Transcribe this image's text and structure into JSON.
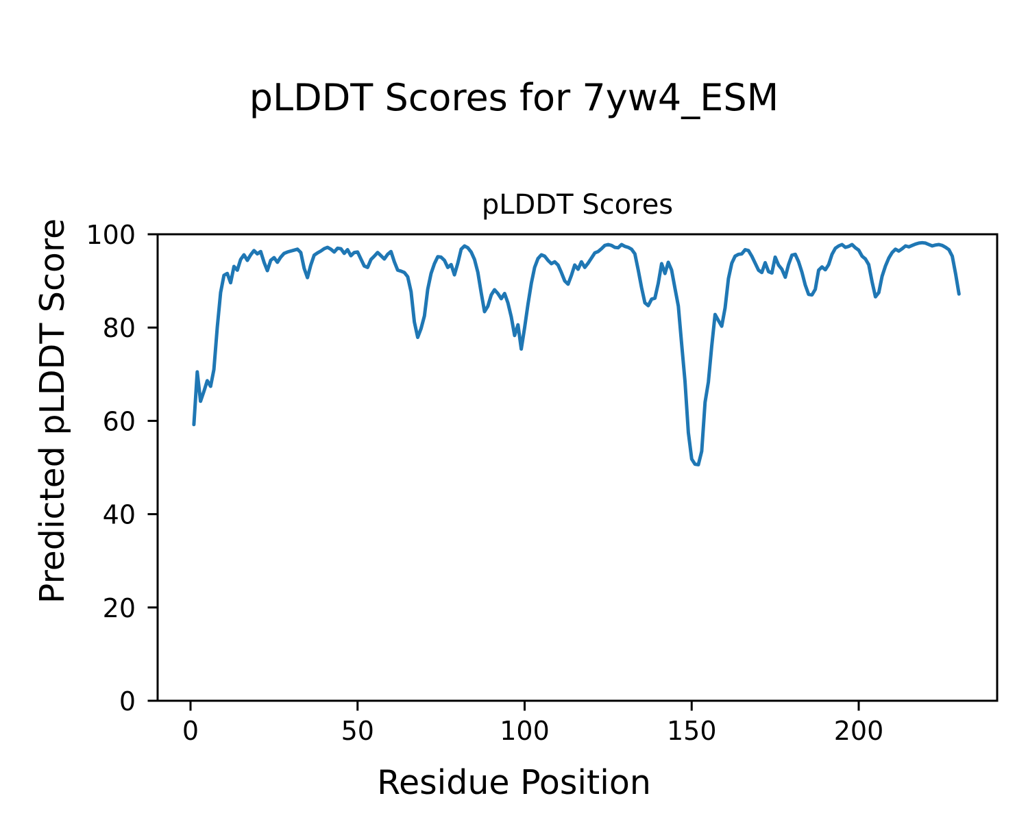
{
  "figure": {
    "suptitle": "pLDDT Scores for 7yw4_ESM",
    "axes_title": "pLDDT Scores",
    "xlabel": "Residue Position",
    "ylabel": "Predicted pLDDT Score"
  },
  "axes": {
    "x_ticks": [
      0,
      50,
      100,
      150,
      200
    ],
    "y_ticks": [
      0,
      20,
      40,
      60,
      80,
      100
    ],
    "xlim": [
      -10,
      241.5
    ],
    "ylim": [
      0,
      100
    ],
    "grid": false,
    "legend": "none"
  },
  "style": {
    "line_color": "#1f77b4",
    "spine_color": "#000000",
    "background_color": "#ffffff",
    "line_width": 5,
    "spine_width": 3
  },
  "chart_data": {
    "type": "line",
    "title": "pLDDT Scores",
    "suptitle": "pLDDT Scores for 7yw4_ESM",
    "xlabel": "Residue Position",
    "ylabel": "Predicted pLDDT Score",
    "xlim": [
      -10,
      241.5
    ],
    "ylim": [
      0,
      100
    ],
    "grid": false,
    "legend_position": "none",
    "series": [
      {
        "name": "pLDDT",
        "color": "#1f77b4",
        "x_start": 1,
        "x_step": 1,
        "values": [
          59.2,
          70.5,
          64.2,
          66.3,
          68.6,
          67.4,
          71.0,
          80.0,
          87.5,
          91.2,
          91.6,
          89.6,
          93.1,
          92.3,
          94.6,
          95.6,
          94.4,
          95.6,
          96.5,
          95.8,
          96.3,
          94.0,
          92.2,
          94.4,
          95.0,
          94.0,
          95.1,
          95.9,
          96.2,
          96.4,
          96.6,
          96.8,
          96.1,
          92.7,
          90.7,
          93.4,
          95.5,
          96.0,
          96.4,
          96.9,
          97.2,
          96.8,
          96.2,
          97.0,
          96.9,
          95.9,
          96.7,
          95.4,
          96.1,
          96.2,
          94.7,
          93.2,
          92.9,
          94.6,
          95.3,
          96.1,
          95.4,
          94.7,
          95.7,
          96.3,
          94.1,
          92.3,
          92.1,
          91.8,
          90.9,
          87.7,
          81.2,
          77.9,
          79.8,
          82.5,
          88.2,
          91.6,
          93.7,
          95.2,
          95.1,
          94.4,
          92.9,
          93.5,
          91.3,
          93.8,
          96.8,
          97.5,
          97.1,
          96.2,
          94.6,
          91.8,
          87.5,
          83.4,
          84.6,
          87.0,
          88.1,
          87.3,
          86.2,
          87.3,
          85.3,
          82.3,
          78.3,
          80.6,
          75.4,
          80.0,
          85.0,
          89.5,
          92.9,
          94.8,
          95.6,
          95.3,
          94.4,
          93.7,
          94.1,
          93.4,
          91.8,
          90.0,
          89.3,
          91.2,
          93.4,
          92.5,
          94.1,
          92.9,
          93.8,
          94.9,
          96.0,
          96.3,
          96.9,
          97.6,
          97.8,
          97.6,
          97.2,
          97.1,
          97.8,
          97.4,
          97.2,
          96.8,
          95.8,
          92.3,
          88.6,
          85.3,
          84.7,
          86.1,
          86.3,
          89.5,
          93.7,
          91.6,
          94.0,
          92.3,
          88.4,
          84.6,
          76.5,
          68.5,
          57.5,
          51.8,
          50.7,
          50.6,
          53.5,
          64.0,
          68.3,
          76.0,
          82.8,
          81.5,
          80.3,
          84.2,
          90.5,
          93.8,
          95.3,
          95.7,
          95.8,
          96.7,
          96.5,
          95.3,
          93.8,
          92.3,
          91.8,
          93.9,
          92.0,
          91.7,
          95.1,
          93.4,
          92.5,
          90.8,
          93.5,
          95.5,
          95.7,
          94.1,
          91.9,
          89.1,
          87.1,
          87.0,
          88.2,
          92.3,
          93.0,
          92.4,
          93.5,
          95.7,
          97.0,
          97.5,
          97.8,
          97.2,
          97.4,
          97.8,
          97.1,
          96.6,
          95.3,
          94.7,
          93.5,
          89.8,
          86.6,
          87.5,
          91.0,
          93.2,
          94.9,
          96.1,
          96.8,
          96.4,
          96.9,
          97.5,
          97.3,
          97.6,
          97.9,
          98.1,
          98.2,
          98.1,
          97.8,
          97.5,
          97.7,
          97.8,
          97.6,
          97.2,
          96.7,
          95.3,
          91.5,
          87.2
        ]
      }
    ]
  }
}
